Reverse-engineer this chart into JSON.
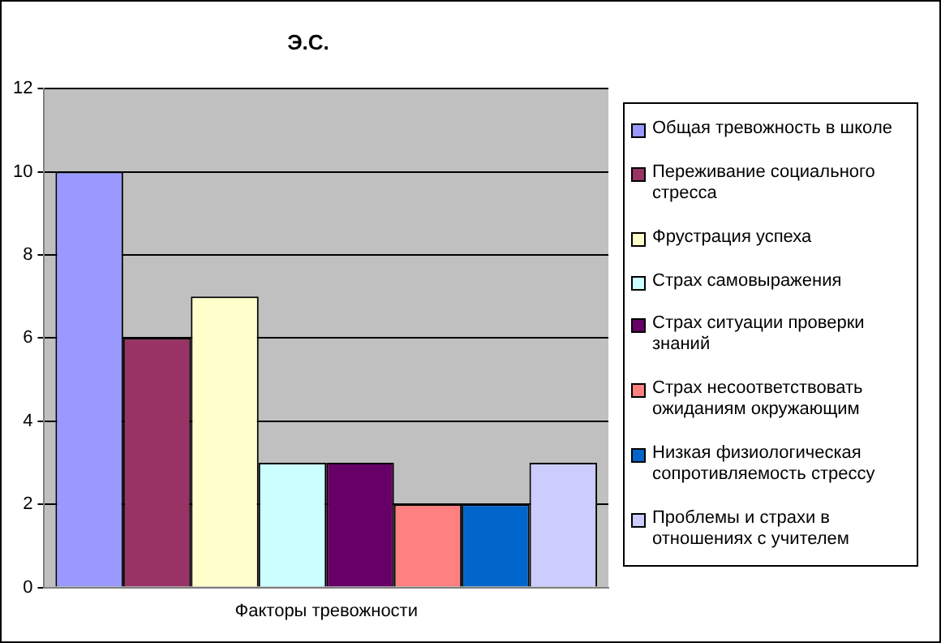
{
  "chart_data": {
    "type": "bar",
    "title": "Э.С.",
    "categories": [
      "Факторы тревожности"
    ],
    "series": [
      {
        "name": "Общая тревожность в школе",
        "color": "#9999ff",
        "values": [
          10
        ]
      },
      {
        "name": "Переживание социального стресса",
        "color": "#993366",
        "values": [
          6
        ]
      },
      {
        "name": "Фрустрация успеха",
        "color": "#ffffcc",
        "values": [
          7
        ]
      },
      {
        "name": "Страх самовыражения",
        "color": "#ccffff",
        "values": [
          3
        ]
      },
      {
        "name": "Страх ситуации проверки знаний",
        "color": "#660066",
        "values": [
          3
        ]
      },
      {
        "name": "Страх несоответствовать ожиданиям окружающим",
        "color": "#ff8080",
        "values": [
          2
        ]
      },
      {
        "name": "Низкая физиологическая сопротивляемость стрессу",
        "color": "#0066cc",
        "values": [
          2
        ]
      },
      {
        "name": "Проблемы и страхи в отношениях с учителем",
        "color": "#ccccff",
        "values": [
          3
        ]
      }
    ],
    "ylim": [
      0,
      12
    ],
    "yticks": [
      0,
      2,
      4,
      6,
      8,
      10,
      12
    ],
    "grid": "y",
    "legend": "right"
  }
}
